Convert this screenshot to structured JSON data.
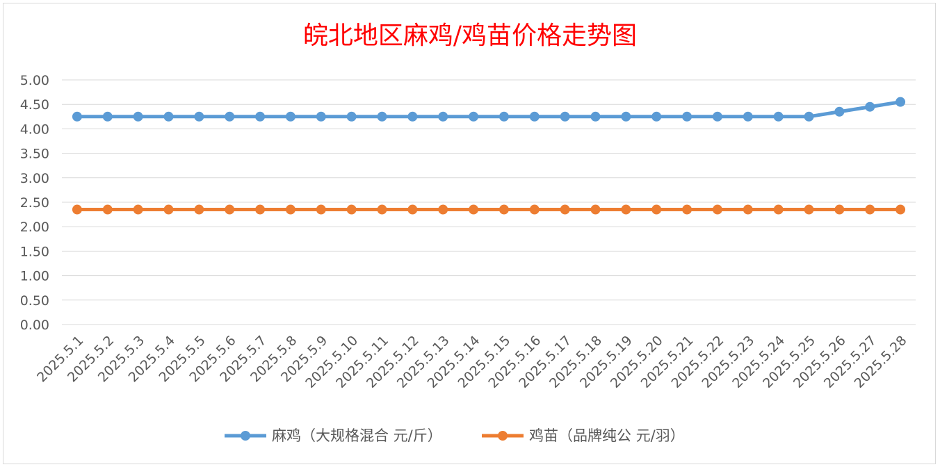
{
  "chart_data": {
    "type": "line",
    "title": "皖北地区麻鸡/鸡苗价格走势图",
    "categories": [
      "2025.5.1",
      "2025.5.2",
      "2025.5.3",
      "2025.5.4",
      "2025.5.5",
      "2025.5.6",
      "2025.5.7",
      "2025.5.8",
      "2025.5.9",
      "2025.5.10",
      "2025.5.11",
      "2025.5.12",
      "2025.5.13",
      "2025.5.14",
      "2025.5.15",
      "2025.5.16",
      "2025.5.17",
      "2025.5.18",
      "2025.5.19",
      "2025.5.20",
      "2025.5.21",
      "2025.5.22",
      "2025.5.23",
      "2025.5.24",
      "2025.5.25",
      "2025.5.26",
      "2025.5.27",
      "2025.5.28"
    ],
    "yticks": [
      "0.00",
      "0.50",
      "1.00",
      "1.50",
      "2.00",
      "2.50",
      "3.00",
      "3.50",
      "4.00",
      "4.50",
      "5.00"
    ],
    "ylim": [
      0,
      5
    ],
    "grid": true,
    "legend_position": "bottom",
    "series": [
      {
        "name": "麻鸡（大规格混合 元/斤）",
        "color": "#5b9bd5",
        "values": [
          4.25,
          4.25,
          4.25,
          4.25,
          4.25,
          4.25,
          4.25,
          4.25,
          4.25,
          4.25,
          4.25,
          4.25,
          4.25,
          4.25,
          4.25,
          4.25,
          4.25,
          4.25,
          4.25,
          4.25,
          4.25,
          4.25,
          4.25,
          4.25,
          4.25,
          4.35,
          4.45,
          4.55
        ]
      },
      {
        "name": "鸡苗（品牌纯公 元/羽）",
        "color": "#ed7d31",
        "values": [
          2.35,
          2.35,
          2.35,
          2.35,
          2.35,
          2.35,
          2.35,
          2.35,
          2.35,
          2.35,
          2.35,
          2.35,
          2.35,
          2.35,
          2.35,
          2.35,
          2.35,
          2.35,
          2.35,
          2.35,
          2.35,
          2.35,
          2.35,
          2.35,
          2.35,
          2.35,
          2.35,
          2.35
        ]
      }
    ]
  }
}
